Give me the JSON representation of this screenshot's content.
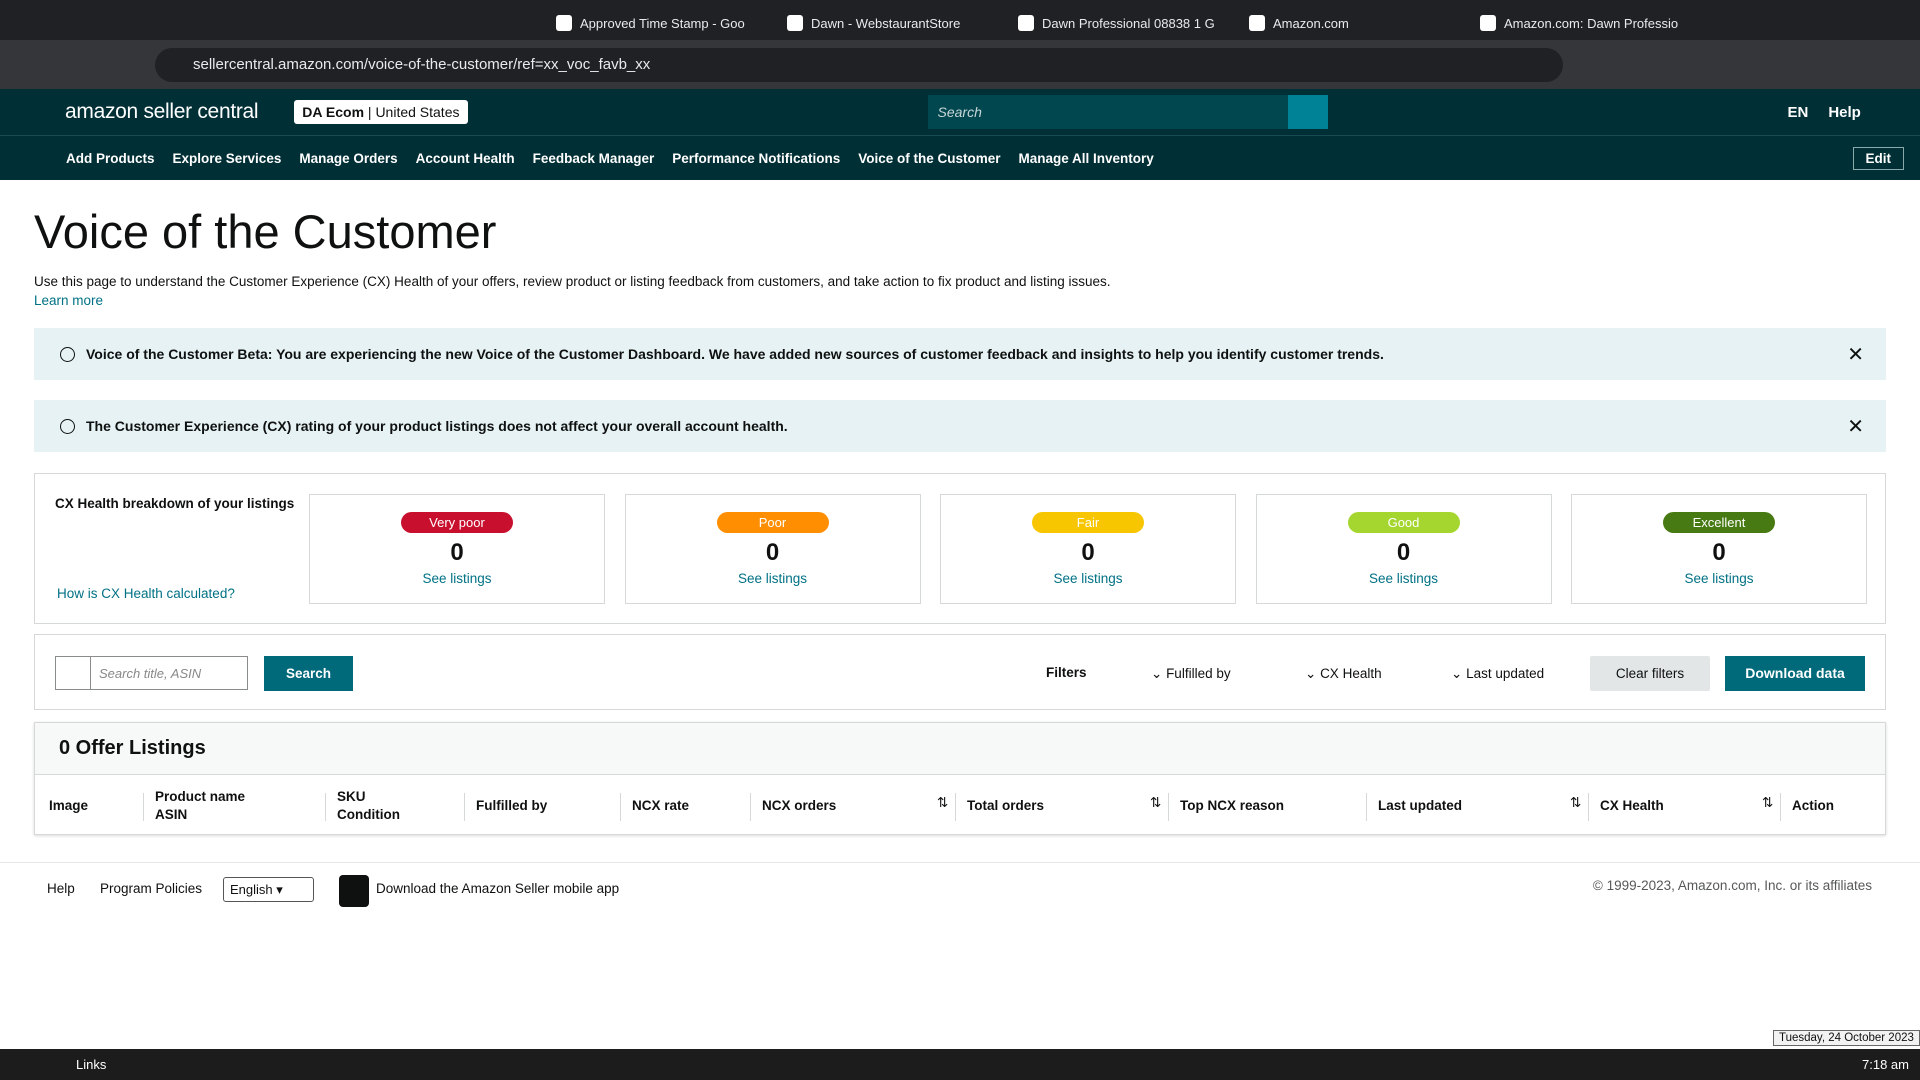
{
  "browser": {
    "tabs": [
      "Approved Time Stamp - Goo",
      "Dawn - WebstaurantStore",
      "Dawn Professional 08838 1 G",
      "Amazon.com",
      "Amazon.com: Dawn Professio"
    ],
    "url": "sellercentral.amazon.com/voice-of-the-customer/ref=xx_voc_favb_xx"
  },
  "header": {
    "logo": "amazon seller central",
    "store": "DA Ecom",
    "marketplace": "United States",
    "search_placeholder": "Search",
    "language": "EN",
    "help": "Help"
  },
  "nav": {
    "items": [
      "Add Products",
      "Explore Services",
      "Manage Orders",
      "Account Health",
      "Feedback Manager",
      "Performance Notifications",
      "Voice of the Customer",
      "Manage All Inventory"
    ],
    "edit": "Edit"
  },
  "page": {
    "title": "Voice of the Customer",
    "description": "Use this page to understand the Customer Experience (CX) Health of your offers, review product or listing feedback from customers, and take action to fix product and listing issues.",
    "learn_more": "Learn more"
  },
  "banners": [
    "Voice of the Customer Beta: You are experiencing the new Voice of the Customer Dashboard. We have added new sources of customer feedback and insights to help you identify customer trends.",
    "The Customer Experience (CX) rating of your product listings does not affect your overall account health."
  ],
  "cx_health": {
    "heading": "CX Health breakdown of your listings",
    "help_link": "How is CX Health calculated?",
    "cards": [
      {
        "label": "Very poor",
        "count": 0,
        "link": "See listings",
        "color": "#c8102e"
      },
      {
        "label": "Poor",
        "count": 0,
        "link": "See listings",
        "color": "#ff8f00"
      },
      {
        "label": "Fair",
        "count": 0,
        "link": "See listings",
        "color": "#f7c600"
      },
      {
        "label": "Good",
        "count": 0,
        "link": "See listings",
        "color": "#a4d62f"
      },
      {
        "label": "Excellent",
        "count": 0,
        "link": "See listings",
        "color": "#477a12"
      }
    ]
  },
  "toolbar": {
    "search_placeholder": "Search title, ASIN",
    "search_button": "Search",
    "filters_label": "Filters",
    "filters": [
      "Fulfilled by",
      "CX Health",
      "Last updated"
    ],
    "clear_filters": "Clear filters",
    "download": "Download data"
  },
  "table": {
    "title": "0 Offer Listings",
    "columns": [
      [
        "Image"
      ],
      [
        "Product name",
        "ASIN"
      ],
      [
        "SKU",
        "Condition"
      ],
      [
        "Fulfilled by"
      ],
      [
        "NCX rate"
      ],
      [
        "NCX orders"
      ],
      [
        "Total orders"
      ],
      [
        "Top NCX reason"
      ],
      [
        "Last updated"
      ],
      [
        "CX Health"
      ],
      [
        "Action"
      ]
    ],
    "sortable": [
      false,
      false,
      false,
      false,
      false,
      true,
      true,
      false,
      true,
      true,
      false
    ]
  },
  "footer": {
    "links": [
      "Help",
      "Program Policies"
    ],
    "language": "English",
    "app_text": "Download the Amazon Seller mobile app",
    "copyright": "© 1999-2023, Amazon.com, Inc. or its affiliates"
  },
  "taskbar": {
    "search": "Links",
    "time": "7:18 am",
    "date": "Tuesday, 24 October 2023"
  }
}
